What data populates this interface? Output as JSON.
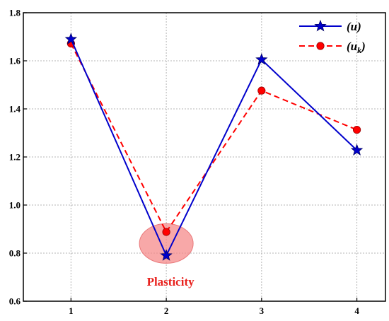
{
  "chart_data": {
    "type": "line",
    "title": "",
    "xlabel": "",
    "ylabel": "",
    "x": [
      1,
      2,
      3,
      4
    ],
    "xlim": [
      0.5,
      4.3
    ],
    "ylim": [
      0.6,
      1.8
    ],
    "xticks": [
      1,
      2,
      3,
      4
    ],
    "yticks": [
      0.6,
      0.8,
      1.0,
      1.2,
      1.4,
      1.6,
      1.8
    ],
    "ytick_labels": [
      "0.6",
      "0.8",
      "1.0",
      "1.2",
      "1.4",
      "1.6",
      "1.8"
    ],
    "xtick_labels": [
      "1",
      "2",
      "3",
      "4"
    ],
    "grid": true,
    "legend_position": "top-right",
    "series": [
      {
        "name": "(u)",
        "legend_base": "u",
        "legend_sub": "",
        "values": [
          1.69,
          0.79,
          1.605,
          1.228
        ],
        "color": "#0000cc",
        "marker": "star",
        "line": "solid"
      },
      {
        "name": "(uk)",
        "legend_base": "u",
        "legend_sub": "k",
        "values": [
          1.672,
          0.888,
          1.476,
          1.313
        ],
        "color": "#ff0000",
        "marker": "circle",
        "line": "dashed"
      }
    ],
    "annotation": {
      "text": "Plasticity",
      "x": 2,
      "y": 0.84,
      "color": "#e8201c",
      "highlight_color": "#f58b8b"
    }
  }
}
